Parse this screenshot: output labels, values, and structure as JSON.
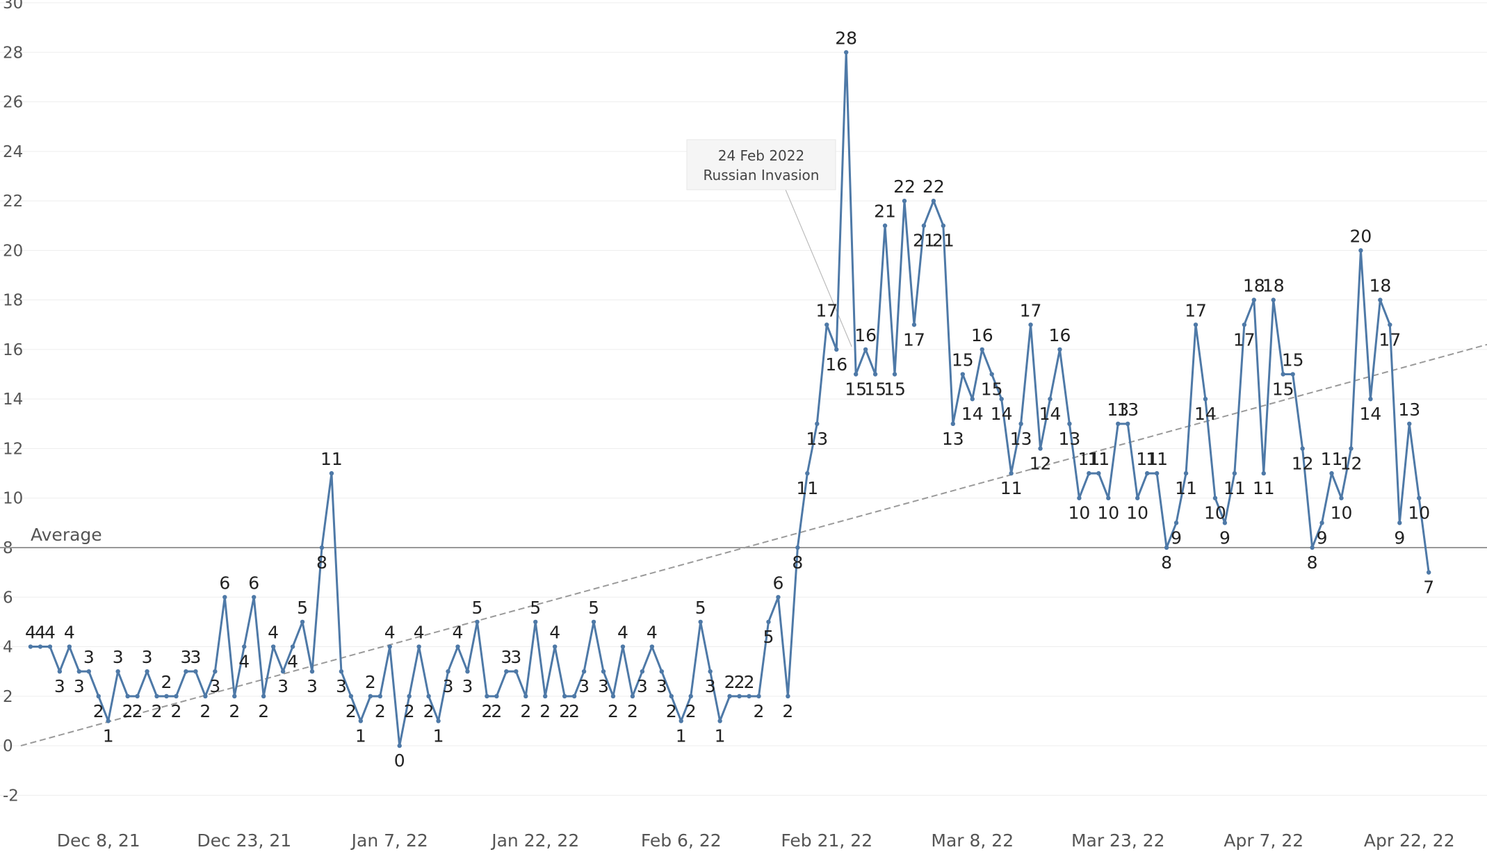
{
  "chart_data": {
    "type": "line",
    "title": "",
    "xlabel": "",
    "ylabel": "",
    "ylim": [
      -3,
      30
    ],
    "y_ticks": [
      "-2",
      "0",
      "2",
      "4",
      "6",
      "8",
      "10",
      "12",
      "14",
      "16",
      "18",
      "20",
      "22",
      "24",
      "26",
      "28",
      "30"
    ],
    "x_tick_labels": [
      "Dec 8, 21",
      "Dec 23, 21",
      "Jan 7, 22",
      "Jan 22, 22",
      "Feb 6, 22",
      "Feb 21, 22",
      "Mar 8, 22",
      "Mar 23, 22",
      "Apr 7, 22",
      "Apr 22, 22"
    ],
    "x_start": "2021-11-30",
    "x_end": "2022-04-30",
    "grid": true,
    "average": {
      "label": "Average",
      "value": 8
    },
    "trend_line": {
      "style": "dashed",
      "from": [
        "2021-11-30",
        0
      ],
      "to": [
        "2022-04-30",
        16.2
      ]
    },
    "annotation": {
      "line1": "24 Feb 2022",
      "line2": "Russian Invasion",
      "date": "2022-02-24",
      "value": 16
    },
    "series": [
      {
        "color": "#4e79a7",
        "start_date": "2021-12-01",
        "values": [
          4,
          4,
          4,
          3,
          4,
          3,
          3,
          2,
          1,
          3,
          2,
          2,
          3,
          2,
          2,
          2,
          3,
          3,
          2,
          3,
          6,
          2,
          4,
          6,
          2,
          4,
          3,
          4,
          5,
          3,
          8,
          11,
          3,
          2,
          1,
          2,
          2,
          4,
          0,
          2,
          4,
          2,
          1,
          3,
          4,
          3,
          5,
          2,
          2,
          3,
          3,
          2,
          5,
          2,
          4,
          2,
          2,
          3,
          5,
          3,
          2,
          4,
          2,
          3,
          4,
          3,
          2,
          1,
          2,
          5,
          3,
          1,
          2,
          2,
          2,
          2,
          5,
          6,
          2,
          8,
          11,
          13,
          17,
          16,
          28,
          15,
          16,
          15,
          21,
          15,
          22,
          17,
          21,
          22,
          21,
          13,
          15,
          14,
          16,
          15,
          14,
          11,
          13,
          17,
          12,
          14,
          16,
          13,
          10,
          11,
          11,
          10,
          13,
          13,
          10,
          11,
          11,
          8,
          9,
          11,
          17,
          14,
          10,
          9,
          11,
          17,
          18,
          11,
          18,
          15,
          15,
          12,
          8,
          9,
          11,
          10,
          12,
          20,
          14,
          18,
          17,
          9,
          13,
          10,
          7
        ]
      }
    ]
  }
}
